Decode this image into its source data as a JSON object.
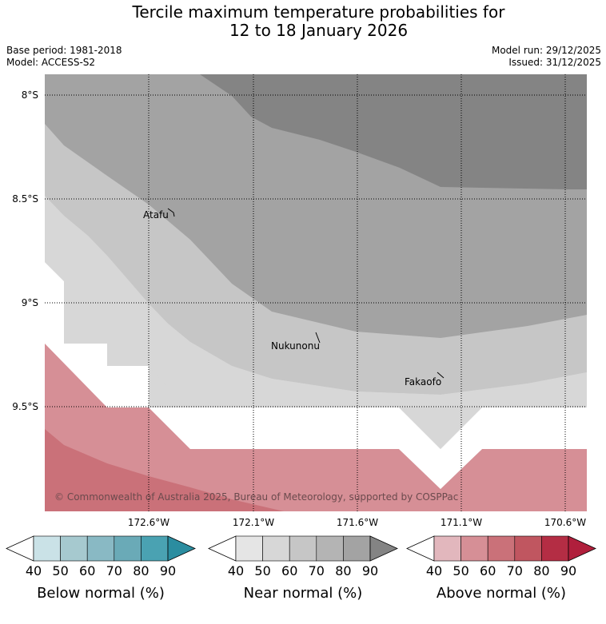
{
  "header": {
    "title_line1": "Tercile maximum temperature probabilities for",
    "title_line2": "12 to 18 January 2026",
    "base_period": "Base period: 1981-2018",
    "model": "Model: ACCESS-S2",
    "model_run": "Model run: 29/12/2025",
    "issued": "Issued: 31/12/2025"
  },
  "map": {
    "latitude_labels": [
      "8°S",
      "8.5°S",
      "9°S",
      "9.5°S"
    ],
    "longitude_labels": [
      "172.6°W",
      "172.1°W",
      "171.6°W",
      "171.1°W",
      "170.6°W"
    ],
    "places": [
      "Atafu",
      "Nukunonu",
      "Fakaofo"
    ],
    "copyright": "© Commonwealth of Australia 2025, Bureau of Meteorology, supported by COSPPac"
  },
  "legends": [
    {
      "label": "Below normal (%)",
      "ticks": [
        "40",
        "50",
        "60",
        "70",
        "80",
        "90"
      ],
      "colors": [
        "#ffffff",
        "#cae2e7",
        "#a6c9cf",
        "#89b9c4",
        "#6aaab7",
        "#4aa2b2",
        "#2b8da0"
      ]
    },
    {
      "label": "Near normal (%)",
      "ticks": [
        "40",
        "50",
        "60",
        "70",
        "80",
        "90"
      ],
      "colors": [
        "#ffffff",
        "#e5e5e5",
        "#d7d7d7",
        "#c6c6c6",
        "#b4b4b4",
        "#a3a3a3",
        "#848484"
      ]
    },
    {
      "label": "Above normal (%)",
      "ticks": [
        "40",
        "50",
        "60",
        "70",
        "80",
        "90"
      ],
      "colors": [
        "#ffffff",
        "#e2b7bd",
        "#d68f96",
        "#ca7179",
        "#c05660",
        "#b42d44",
        "#b01f3c"
      ]
    }
  ]
}
